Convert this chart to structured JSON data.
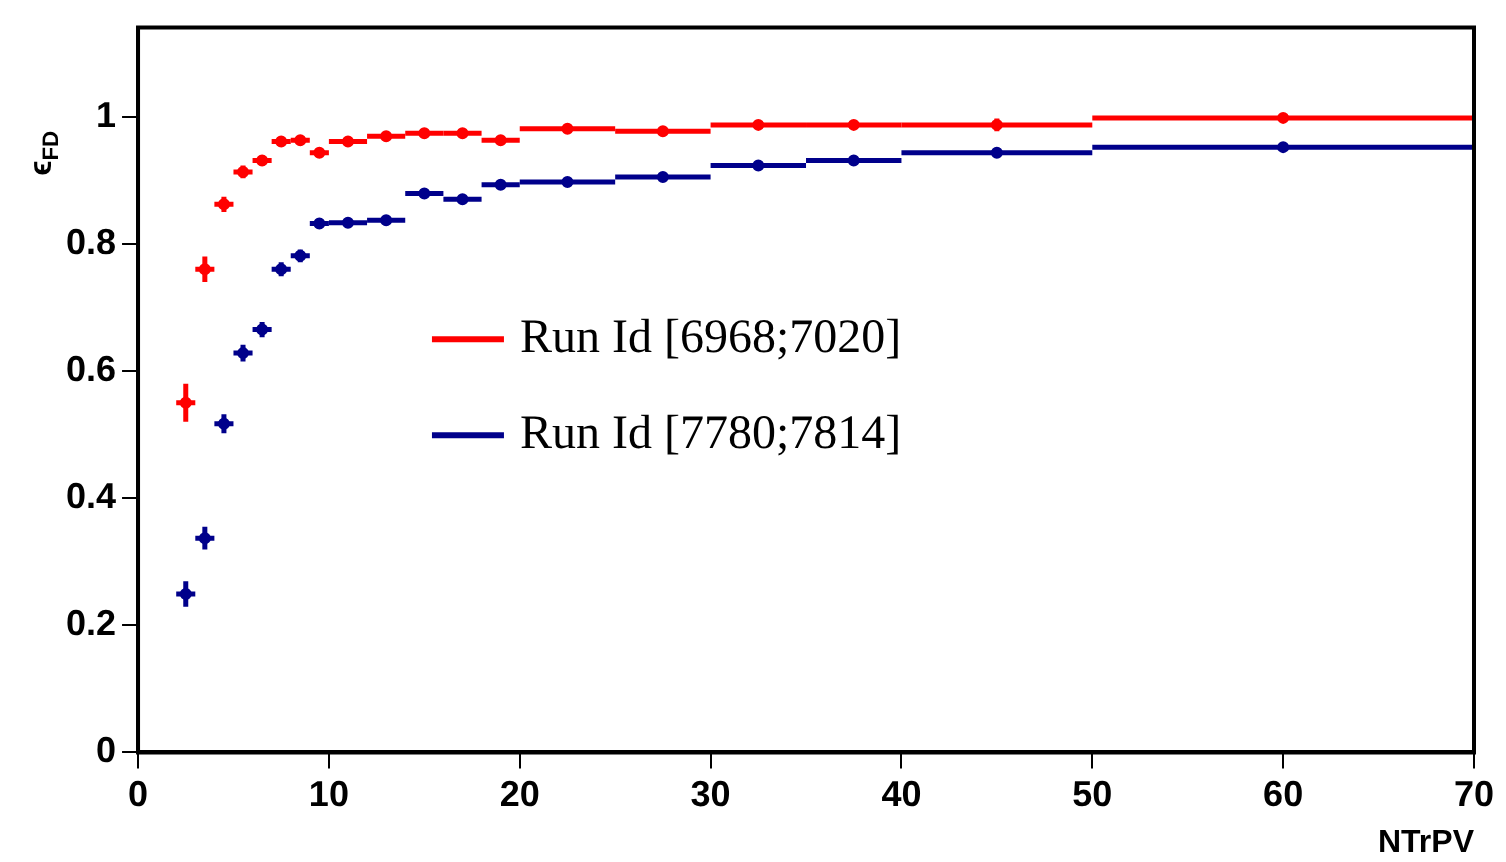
{
  "chart_data": {
    "type": "scatter",
    "xlabel": "NTrPV",
    "ylabel": "ϵ$_{FD}$",
    "xlim": [
      0,
      70
    ],
    "xticks": [
      0,
      10,
      20,
      30,
      40,
      50,
      60,
      70
    ],
    "ylim": [
      0,
      1.14
    ],
    "yticks": [
      0,
      0.2,
      0.4,
      0.6,
      0.8,
      1
    ],
    "grid": false,
    "legend": "left",
    "series": [
      {
        "name": "Run Id [6968;7020]",
        "color": "#ff0000",
        "x": [
          2.5,
          3.5,
          4.5,
          5.5,
          6.5,
          7.5,
          8.5,
          9.5,
          11,
          13,
          15,
          17,
          19,
          22.5,
          27.5,
          32.5,
          37.5,
          45,
          60
        ],
        "xerrors": [
          0.5,
          0.5,
          0.5,
          0.5,
          0.5,
          0.5,
          0.5,
          0.5,
          1,
          1,
          1,
          1,
          1,
          2.5,
          2.5,
          2.5,
          2.5,
          5,
          10
        ],
        "values": [
          0.55,
          0.76,
          0.862,
          0.913,
          0.931,
          0.961,
          0.963,
          0.943,
          0.961,
          0.969,
          0.974,
          0.974,
          0.963,
          0.981,
          0.977,
          0.987,
          0.987,
          0.987,
          0.998
        ],
        "errors": [
          0.03,
          0.02,
          0.012,
          0.01,
          0.008,
          0.006,
          0.006,
          0.006,
          0.004,
          0.004,
          0.003,
          0.003,
          0.003,
          0.002,
          0.002,
          0.003,
          0.004,
          0.01,
          0.003
        ]
      },
      {
        "name": "Run Id [7780;7814]",
        "color": "#00008b",
        "x": [
          2.5,
          3.5,
          4.5,
          5.5,
          6.5,
          7.5,
          8.5,
          9.5,
          11,
          13,
          15,
          17,
          19,
          22.5,
          27.5,
          32.5,
          37.5,
          45,
          60
        ],
        "xerrors": [
          0.5,
          0.5,
          0.5,
          0.5,
          0.5,
          0.5,
          0.5,
          0.5,
          1,
          1,
          1,
          1,
          1,
          2.5,
          2.5,
          2.5,
          2.5,
          5,
          10
        ],
        "values": [
          0.249,
          0.337,
          0.517,
          0.628,
          0.665,
          0.76,
          0.781,
          0.832,
          0.833,
          0.837,
          0.879,
          0.87,
          0.893,
          0.897,
          0.905,
          0.923,
          0.931,
          0.943,
          0.952
        ],
        "errors": [
          0.02,
          0.018,
          0.015,
          0.013,
          0.012,
          0.011,
          0.01,
          0.008,
          0.006,
          0.005,
          0.005,
          0.005,
          0.004,
          0.003,
          0.003,
          0.003,
          0.003,
          0.003,
          0.004
        ]
      }
    ]
  }
}
